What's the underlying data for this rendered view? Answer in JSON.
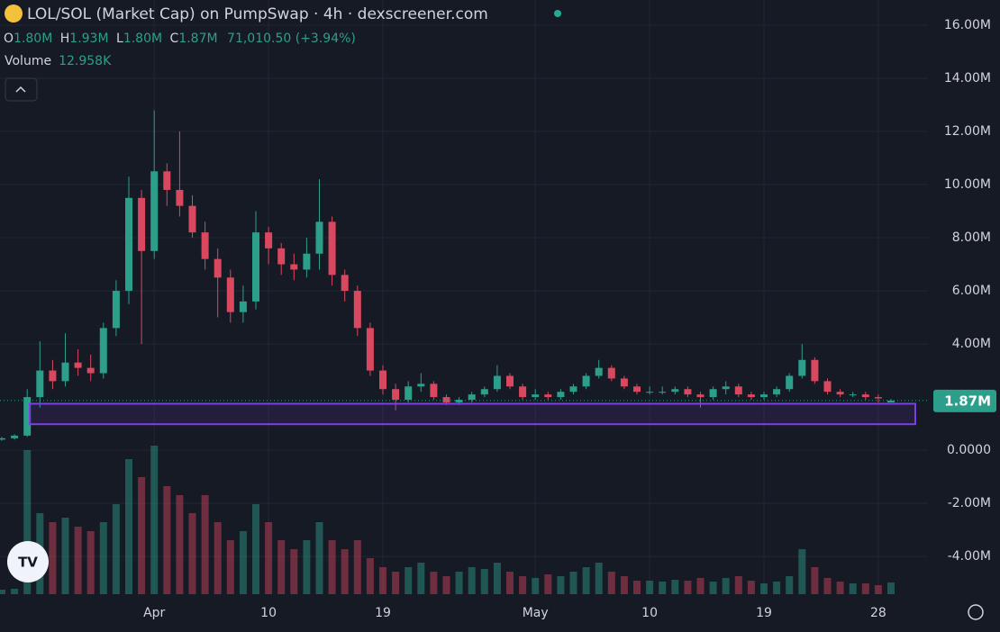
{
  "header": {
    "title": "LOL/SOL (Market Cap) on PumpSwap · 4h · dexscreener.com",
    "ohlc": [
      {
        "label": "O",
        "value": "1.80M"
      },
      {
        "label": "H",
        "value": "1.93M"
      },
      {
        "label": "L",
        "value": "1.80M"
      },
      {
        "label": "C",
        "value": "1.87M"
      }
    ],
    "change": "71,010.50 (+3.94%)",
    "volume_label": "Volume",
    "volume_value": "12.958K"
  },
  "chart_data": {
    "type": "candlestick",
    "categories": [
      null,
      null,
      null,
      null,
      null,
      null,
      null,
      null,
      null,
      null,
      null,
      null,
      "Apr",
      null,
      null,
      null,
      null,
      null,
      null,
      null,
      null,
      "10",
      null,
      null,
      null,
      null,
      null,
      null,
      null,
      null,
      "19",
      null,
      null,
      null,
      null,
      null,
      null,
      null,
      null,
      null,
      null,
      null,
      "May",
      null,
      null,
      null,
      null,
      null,
      null,
      null,
      null,
      "10",
      null,
      null,
      null,
      null,
      null,
      null,
      null,
      null,
      "19",
      null,
      null,
      null,
      null,
      null,
      null,
      null,
      null,
      "28",
      null
    ],
    "open": [
      0.4,
      0.45,
      0.55,
      2.0,
      3.0,
      2.6,
      3.3,
      3.1,
      2.9,
      4.6,
      6.0,
      9.5,
      7.5,
      10.5,
      9.8,
      9.2,
      8.2,
      7.2,
      6.5,
      5.2,
      5.6,
      8.2,
      7.6,
      7.0,
      6.8,
      7.4,
      8.6,
      6.6,
      6.0,
      4.6,
      3.0,
      2.3,
      1.9,
      2.4,
      2.5,
      2.0,
      1.8,
      1.9,
      2.1,
      2.3,
      2.8,
      2.4,
      2.0,
      2.1,
      2.0,
      2.2,
      2.4,
      2.8,
      3.1,
      2.7,
      2.4,
      2.2,
      2.2,
      2.2,
      2.3,
      2.1,
      2.0,
      2.3,
      2.4,
      2.1,
      2.0,
      2.1,
      2.3,
      2.8,
      3.4,
      2.6,
      2.2,
      2.1,
      2.1,
      2.0,
      1.8
    ],
    "high": [
      0.5,
      0.6,
      2.3,
      4.1,
      3.4,
      4.4,
      3.8,
      3.6,
      4.8,
      6.4,
      10.3,
      9.8,
      12.8,
      10.8,
      12.0,
      9.6,
      8.6,
      7.6,
      6.8,
      6.2,
      9.0,
      8.4,
      7.8,
      7.4,
      8.0,
      10.2,
      8.8,
      6.8,
      6.2,
      4.8,
      3.2,
      2.5,
      2.6,
      2.9,
      2.6,
      2.1,
      2.0,
      2.2,
      2.4,
      3.2,
      2.9,
      2.5,
      2.3,
      2.2,
      2.3,
      2.5,
      2.9,
      3.4,
      3.2,
      2.8,
      2.5,
      2.4,
      2.4,
      2.4,
      2.4,
      2.2,
      2.4,
      2.6,
      2.5,
      2.2,
      2.2,
      2.4,
      2.9,
      4.0,
      3.5,
      2.7,
      2.3,
      2.2,
      2.2,
      2.1,
      1.93
    ],
    "low": [
      0.35,
      0.4,
      0.5,
      1.6,
      2.3,
      2.4,
      2.8,
      2.6,
      2.7,
      4.3,
      5.5,
      4.0,
      7.2,
      9.2,
      8.8,
      8.0,
      6.8,
      5.0,
      4.8,
      4.8,
      5.3,
      7.0,
      6.6,
      6.4,
      6.5,
      6.8,
      6.2,
      5.6,
      4.3,
      2.8,
      2.1,
      1.5,
      1.8,
      2.2,
      1.9,
      1.7,
      1.7,
      1.8,
      2.0,
      2.2,
      2.3,
      1.9,
      1.9,
      1.9,
      1.9,
      2.1,
      2.3,
      2.7,
      2.6,
      2.3,
      2.1,
      2.1,
      2.1,
      2.1,
      2.0,
      1.6,
      1.9,
      2.1,
      2.0,
      1.9,
      1.9,
      2.0,
      2.2,
      2.7,
      2.5,
      2.1,
      2.0,
      2.0,
      1.9,
      1.8,
      1.8
    ],
    "close": [
      0.45,
      0.55,
      2.0,
      3.0,
      2.6,
      3.3,
      3.1,
      2.9,
      4.6,
      6.0,
      9.5,
      7.5,
      10.5,
      9.8,
      9.2,
      8.2,
      7.2,
      6.5,
      5.2,
      5.6,
      8.2,
      7.6,
      7.0,
      6.8,
      7.4,
      8.6,
      6.6,
      6.0,
      4.6,
      3.0,
      2.3,
      1.9,
      2.4,
      2.5,
      2.0,
      1.8,
      1.9,
      2.1,
      2.3,
      2.8,
      2.4,
      2.0,
      2.1,
      2.0,
      2.2,
      2.4,
      2.8,
      3.1,
      2.7,
      2.4,
      2.2,
      2.2,
      2.2,
      2.3,
      2.1,
      2.0,
      2.3,
      2.4,
      2.1,
      2.0,
      2.1,
      2.3,
      2.8,
      3.4,
      2.6,
      2.2,
      2.1,
      2.1,
      2.0,
      1.95,
      1.87
    ],
    "volume": {
      "values": [
        5,
        6,
        160,
        90,
        80,
        85,
        75,
        70,
        80,
        100,
        150,
        130,
        165,
        120,
        110,
        90,
        110,
        80,
        60,
        70,
        100,
        80,
        60,
        50,
        60,
        80,
        60,
        50,
        60,
        40,
        30,
        25,
        30,
        35,
        25,
        20,
        25,
        30,
        28,
        35,
        25,
        20,
        18,
        22,
        20,
        25,
        30,
        35,
        25,
        20,
        15,
        15,
        14,
        16,
        15,
        18,
        14,
        18,
        20,
        15,
        12,
        14,
        20,
        50,
        30,
        18,
        14,
        12,
        12,
        10,
        12.958
      ],
      "lim": [
        0,
        200
      ]
    },
    "up_color": "#2c9f8b",
    "down_color": "#d9485f",
    "ylim": [
      -5.42,
      16.95
    ],
    "yticks": [
      {
        "value": 16,
        "label": "16.00M"
      },
      {
        "value": 14,
        "label": "14.00M"
      },
      {
        "value": 12,
        "label": "12.00M"
      },
      {
        "value": 10,
        "label": "10.00M"
      },
      {
        "value": 8,
        "label": "8.00M"
      },
      {
        "value": 6,
        "label": "6.00M"
      },
      {
        "value": 4,
        "label": "4.00M"
      },
      {
        "value": 0,
        "label": "0.0000"
      },
      {
        "value": -2,
        "label": "-2.00M"
      },
      {
        "value": -4,
        "label": "-4.00M"
      }
    ],
    "last_price": {
      "value": 1.87,
      "label": "1.87M"
    },
    "box": {
      "top": 1.75,
      "bottom": 0.98,
      "color": "#7b3fe4"
    },
    "grid": true
  }
}
